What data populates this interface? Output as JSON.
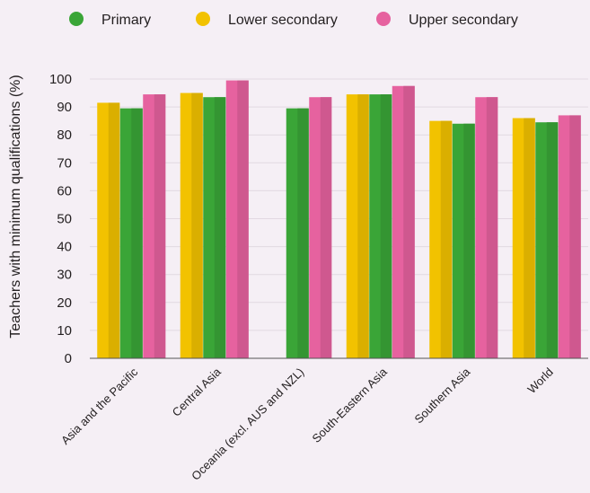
{
  "chart_data": {
    "type": "bar",
    "title": "",
    "xlabel": "",
    "ylabel": "Teachers with minimum qualifications (%)",
    "ylim": [
      0,
      100
    ],
    "yticks": [
      0,
      10,
      20,
      30,
      40,
      50,
      60,
      70,
      80,
      90,
      100
    ],
    "legend_position": "top",
    "categories": [
      "Asia and the Pacific",
      "Central Asia",
      "Oceania (excl. AUS and NZL)",
      "South-Eastern Asia",
      "Southern Asia",
      "World"
    ],
    "series": [
      {
        "name": "Lower secondary",
        "color": "#f2c200",
        "values": [
          91.5,
          95,
          null,
          94.5,
          85,
          86
        ]
      },
      {
        "name": "Primary",
        "color": "#3aa537",
        "values": [
          89.5,
          93.5,
          89.5,
          94.5,
          84,
          84.5
        ]
      },
      {
        "name": "Upper secondary",
        "color": "#e6629f",
        "values": [
          94.5,
          99.5,
          93.5,
          97.5,
          93.5,
          87
        ]
      }
    ],
    "legend": [
      {
        "name": "Primary",
        "color": "#3aa537"
      },
      {
        "name": "Lower secondary",
        "color": "#f2c200"
      },
      {
        "name": "Upper secondary",
        "color": "#e6629f"
      }
    ]
  }
}
